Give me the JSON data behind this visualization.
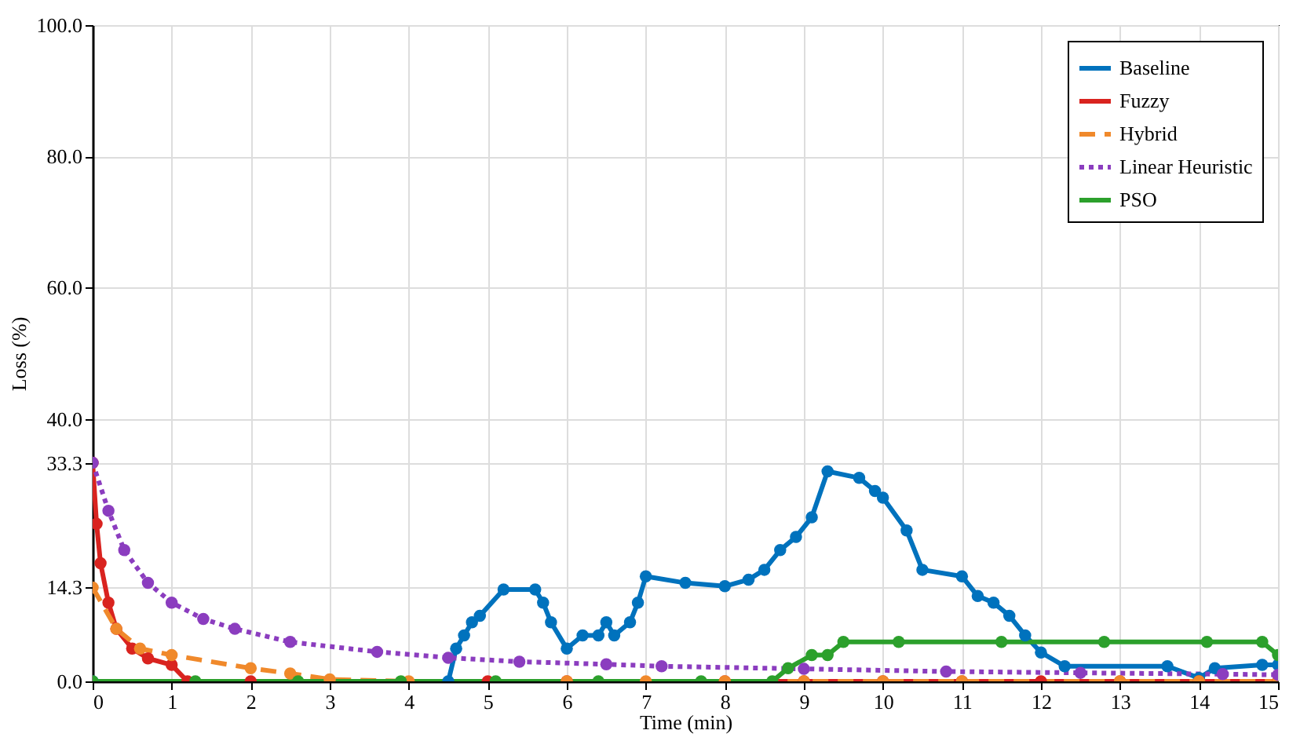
{
  "chart_data": {
    "type": "line",
    "xlabel": "Time (min)",
    "ylabel": "Loss (%)",
    "xlim": [
      0,
      15
    ],
    "xticks": [
      0,
      1,
      2,
      3,
      4,
      5,
      6,
      7,
      8,
      9,
      10,
      11,
      12,
      13,
      14,
      15
    ],
    "ylim": [
      0,
      100
    ],
    "yticks": [
      {
        "value": 0,
        "label": "0.0"
      },
      {
        "value": 14.3,
        "label": "14.3"
      },
      {
        "value": 33.3,
        "label": "33.3"
      },
      {
        "value": 40,
        "label": "40.0"
      },
      {
        "value": 60,
        "label": "60.0"
      },
      {
        "value": 80,
        "label": "80.0"
      },
      {
        "value": 100,
        "label": "100.0"
      }
    ],
    "grid": true,
    "legend": "top right",
    "marker": "circle",
    "series": [
      {
        "name": "Baseline",
        "color": "#0072bd",
        "line_style": "solid",
        "x": [
          0,
          4.5,
          4.6,
          4.7,
          4.8,
          4.9,
          5.2,
          5.6,
          5.7,
          5.8,
          6.0,
          6.2,
          6.4,
          6.5,
          6.6,
          6.8,
          6.9,
          7.0,
          7.5,
          8.0,
          8.3,
          8.5,
          8.7,
          8.9,
          9.1,
          9.3,
          9.7,
          9.9,
          10.0,
          10.3,
          10.5,
          11.0,
          11.2,
          11.4,
          11.6,
          11.8,
          12.0,
          12.3,
          13.6,
          14.0,
          14.2,
          14.8,
          15
        ],
        "values": [
          0,
          0,
          5,
          7,
          9,
          10,
          14,
          14,
          12,
          9,
          5,
          7,
          7,
          9,
          7,
          9,
          12,
          16,
          15,
          14.5,
          15.5,
          17,
          20,
          22,
          25,
          32,
          31,
          29,
          28,
          23,
          17,
          16,
          13,
          12,
          10,
          7,
          4.4,
          2.3,
          2.3,
          0.5,
          2,
          2.5,
          2.5
        ]
      },
      {
        "name": "Fuzzy",
        "color": "#d9231f",
        "line_style": "solid",
        "x": [
          0,
          0.05,
          0.1,
          0.2,
          0.3,
          0.5,
          0.7,
          1,
          1.2,
          2,
          5,
          6,
          8,
          9,
          10,
          11,
          12,
          13,
          14,
          15
        ],
        "values": [
          33.3,
          24,
          18,
          12,
          8,
          5,
          3.5,
          2.5,
          0,
          0,
          0,
          0,
          0,
          0,
          0,
          0,
          0,
          0,
          0,
          0
        ]
      },
      {
        "name": "Hybrid",
        "color": "#f0892b",
        "line_style": "dashed",
        "x": [
          0,
          0.3,
          0.6,
          1,
          2,
          2.5,
          3,
          4,
          6,
          7,
          8,
          9,
          10,
          11,
          13,
          14,
          15
        ],
        "values": [
          14.3,
          8,
          5,
          4,
          2,
          1.2,
          0.3,
          0,
          0,
          0,
          0,
          0,
          0,
          0,
          0,
          0,
          0
        ]
      },
      {
        "name": "Linear Heuristic",
        "color": "#8b3dbf",
        "line_style": "dotted",
        "x": [
          0,
          0.2,
          0.4,
          0.7,
          1,
          1.4,
          1.8,
          2.5,
          3.6,
          4.5,
          5.4,
          6.5,
          7.2,
          9,
          10.8,
          12.5,
          14.3,
          15
        ],
        "values": [
          33.3,
          26,
          20,
          15,
          12,
          9.5,
          8,
          6,
          4.5,
          3.6,
          3,
          2.6,
          2.3,
          1.9,
          1.5,
          1.3,
          1.1,
          1
        ]
      },
      {
        "name": "PSO",
        "color": "#2ca02c",
        "line_style": "solid",
        "x": [
          0,
          1.3,
          2.6,
          3.9,
          5.1,
          6.4,
          7.7,
          8.6,
          8.8,
          9.1,
          9.3,
          9.5,
          10.2,
          11.5,
          12.8,
          14.1,
          14.8,
          15
        ],
        "values": [
          0,
          0,
          0,
          0,
          0,
          0,
          0,
          0,
          2,
          4,
          4,
          6,
          6,
          6,
          6,
          6,
          6,
          4
        ]
      }
    ]
  }
}
